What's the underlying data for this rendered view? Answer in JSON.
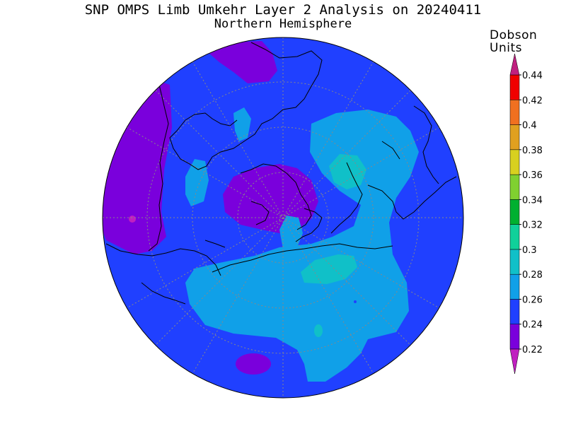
{
  "title": "SNP OMPS Limb Umkehr Layer 2 Analysis on 20240411",
  "subtitle": "Northern Hemisphere",
  "colorbar": {
    "units_line1": "Dobson",
    "units_line2": "Units",
    "ticks": [
      "0.22",
      "0.24",
      "0.26",
      "0.28",
      "0.3",
      "0.32",
      "0.34",
      "0.36",
      "0.38",
      "0.4",
      "0.42",
      "0.44"
    ],
    "bands": [
      {
        "min": 0.22,
        "max": 0.24,
        "color": "#7a00dc"
      },
      {
        "min": 0.24,
        "max": 0.26,
        "color": "#2040ff"
      },
      {
        "min": 0.26,
        "max": 0.28,
        "color": "#10a0e8"
      },
      {
        "min": 0.28,
        "max": 0.3,
        "color": "#10c0c8"
      },
      {
        "min": 0.3,
        "max": 0.32,
        "color": "#10d09a"
      },
      {
        "min": 0.32,
        "max": 0.34,
        "color": "#00b030"
      },
      {
        "min": 0.34,
        "max": 0.36,
        "color": "#80d030"
      },
      {
        "min": 0.36,
        "max": 0.38,
        "color": "#d8d020"
      },
      {
        "min": 0.38,
        "max": 0.4,
        "color": "#e0a020"
      },
      {
        "min": 0.4,
        "max": 0.42,
        "color": "#f07020"
      },
      {
        "min": 0.42,
        "max": 0.44,
        "color": "#f00000"
      }
    ],
    "under_color": "#c020c0",
    "over_color": "#c02080"
  }
}
